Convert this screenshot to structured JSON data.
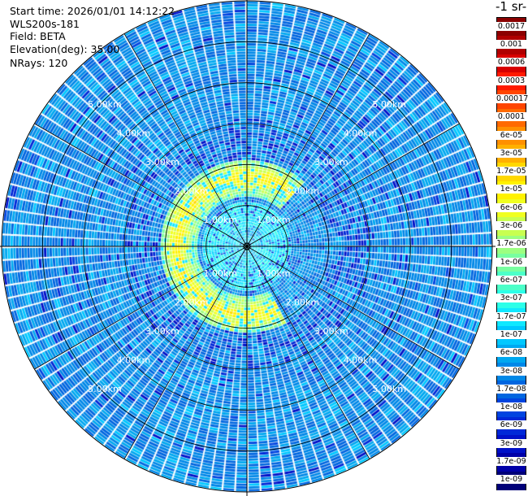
{
  "header": {
    "start_time": "Start time: 2026/01/01 14:12:22",
    "instrument": "WLS200s-181",
    "field": "Field: BETA",
    "elevation": "Elevation(deg): 35.00",
    "nrays": "NRays: 120"
  },
  "colorbar": {
    "title": "-1 sr-",
    "levels": [
      {
        "label": "0.0017",
        "color": "#8b0000"
      },
      {
        "label": "0.001",
        "color": "#b00000"
      },
      {
        "label": "0.0006",
        "color": "#d80000"
      },
      {
        "label": "0.0003",
        "color": "#ff1a00"
      },
      {
        "label": "0.00017",
        "color": "#ff4500"
      },
      {
        "label": "0.0001",
        "color": "#ff6a00"
      },
      {
        "label": "6e-05",
        "color": "#ff9000"
      },
      {
        "label": "3e-05",
        "color": "#ffb000"
      },
      {
        "label": "1.7e-05",
        "color": "#ffd800"
      },
      {
        "label": "1e-05",
        "color": "#fff200"
      },
      {
        "label": "6e-06",
        "color": "#f0ff20"
      },
      {
        "label": "3e-06",
        "color": "#c8ff50"
      },
      {
        "label": "1.7e-06",
        "color": "#9cff80"
      },
      {
        "label": "1e-06",
        "color": "#78ffa0"
      },
      {
        "label": "6e-07",
        "color": "#4cffc8"
      },
      {
        "label": "3e-07",
        "color": "#2cffe8"
      },
      {
        "label": "1.7e-07",
        "color": "#10e8ff"
      },
      {
        "label": "1e-07",
        "color": "#00c8ff"
      },
      {
        "label": "6e-08",
        "color": "#00a8f0"
      },
      {
        "label": "3e-08",
        "color": "#0088e8"
      },
      {
        "label": "1.7e-08",
        "color": "#0066e0"
      },
      {
        "label": "1e-08",
        "color": "#0044e0"
      },
      {
        "label": "6e-09",
        "color": "#0028d8"
      },
      {
        "label": "3e-09",
        "color": "#0010c8"
      },
      {
        "label": "1.7e-09",
        "color": "#0000a8"
      },
      {
        "label": "1e-09",
        "color": "#000078"
      }
    ]
  },
  "chart_data": {
    "type": "heatmap",
    "projection": "polar PPI",
    "field": "BETA",
    "elevation_deg": 35.0,
    "n_rays": 120,
    "range_rings_km": [
      1,
      2,
      3,
      4,
      5
    ],
    "ring_labels": [
      "1.00km",
      "2.00km",
      "3.00km",
      "4.00km",
      "5.00km"
    ],
    "max_range_km": 6,
    "spoke_spacing_deg": 30,
    "description_of_field": "background beta mostly 3e-08 to 6e-08; enhanced ring of 1e-06 to 1e-05 near 1.5-2 km in north-west, west and south sectors; weaker values (1.7e-07 to 3e-07) near radar"
  }
}
